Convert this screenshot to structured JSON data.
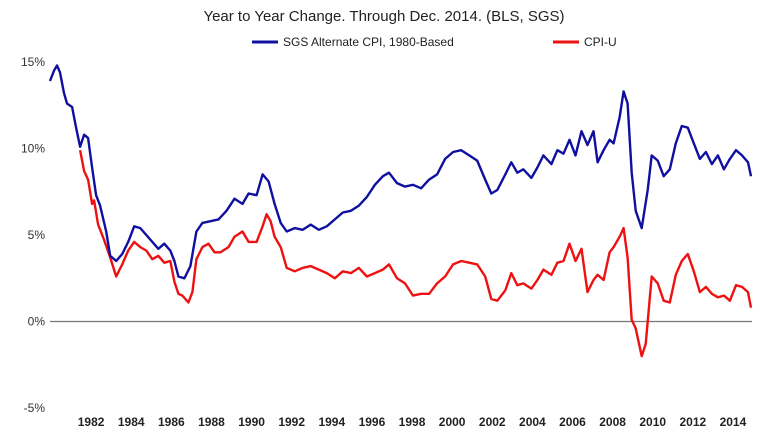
{
  "chart_data": {
    "type": "line",
    "title": "Year to Year Change. Through Dec. 2014.   (BLS, SGS)",
    "xlabel": "",
    "ylabel": "",
    "xlim": [
      1980.0,
      2015.0
    ],
    "ylim": [
      -5,
      15
    ],
    "yticks": [
      -5,
      0,
      5,
      10,
      15
    ],
    "ytick_labels": [
      "-5%",
      "0%",
      "5%",
      "10%",
      "15%"
    ],
    "xticks": [
      1982,
      1984,
      1986,
      1988,
      1990,
      1992,
      1994,
      1996,
      1998,
      2000,
      2002,
      2004,
      2006,
      2008,
      2010,
      2012,
      2014
    ],
    "xtick_labels": [
      "1982",
      "1984",
      "1986",
      "1988",
      "1990",
      "1992",
      "1994",
      "1996",
      "1998",
      "2000",
      "2002",
      "2004",
      "2006",
      "2008",
      "2010",
      "2012",
      "2014"
    ],
    "zero_line": true,
    "grid": false,
    "legend_position": "top",
    "series": [
      {
        "name": "SGS Alternate CPI, 1980-Based",
        "color": "#1010a0",
        "points": [
          [
            1980.0,
            13.9
          ],
          [
            1980.2,
            14.5
          ],
          [
            1980.35,
            14.8
          ],
          [
            1980.5,
            14.4
          ],
          [
            1980.7,
            13.2
          ],
          [
            1980.85,
            12.6
          ],
          [
            1981.1,
            12.4
          ],
          [
            1981.3,
            11.2
          ],
          [
            1981.5,
            10.1
          ],
          [
            1981.7,
            10.8
          ],
          [
            1981.9,
            10.6
          ],
          [
            1982.1,
            8.9
          ],
          [
            1982.3,
            7.3
          ],
          [
            1982.5,
            6.7
          ],
          [
            1982.8,
            5.2
          ],
          [
            1983.0,
            3.8
          ],
          [
            1983.3,
            3.5
          ],
          [
            1983.6,
            3.9
          ],
          [
            1983.9,
            4.6
          ],
          [
            1984.2,
            5.5
          ],
          [
            1984.5,
            5.4
          ],
          [
            1984.8,
            5.0
          ],
          [
            1985.1,
            4.6
          ],
          [
            1985.4,
            4.2
          ],
          [
            1985.7,
            4.5
          ],
          [
            1986.0,
            4.1
          ],
          [
            1986.2,
            3.5
          ],
          [
            1986.4,
            2.6
          ],
          [
            1986.7,
            2.5
          ],
          [
            1987.0,
            3.2
          ],
          [
            1987.3,
            5.2
          ],
          [
            1987.6,
            5.7
          ],
          [
            1988.0,
            5.8
          ],
          [
            1988.4,
            5.9
          ],
          [
            1988.8,
            6.4
          ],
          [
            1989.2,
            7.1
          ],
          [
            1989.6,
            6.8
          ],
          [
            1989.9,
            7.4
          ],
          [
            1990.3,
            7.3
          ],
          [
            1990.6,
            8.5
          ],
          [
            1990.9,
            8.1
          ],
          [
            1991.2,
            6.8
          ],
          [
            1991.5,
            5.7
          ],
          [
            1991.8,
            5.2
          ],
          [
            1992.2,
            5.4
          ],
          [
            1992.6,
            5.3
          ],
          [
            1993.0,
            5.6
          ],
          [
            1993.4,
            5.3
          ],
          [
            1993.8,
            5.5
          ],
          [
            1994.2,
            5.9
          ],
          [
            1994.6,
            6.3
          ],
          [
            1995.0,
            6.4
          ],
          [
            1995.4,
            6.7
          ],
          [
            1995.8,
            7.2
          ],
          [
            1996.2,
            7.9
          ],
          [
            1996.6,
            8.4
          ],
          [
            1996.9,
            8.6
          ],
          [
            1997.3,
            8.0
          ],
          [
            1997.7,
            7.8
          ],
          [
            1998.1,
            7.9
          ],
          [
            1998.5,
            7.7
          ],
          [
            1998.9,
            8.2
          ],
          [
            1999.3,
            8.5
          ],
          [
            1999.7,
            9.4
          ],
          [
            2000.1,
            9.8
          ],
          [
            2000.5,
            9.9
          ],
          [
            2000.9,
            9.6
          ],
          [
            2001.3,
            9.3
          ],
          [
            2001.7,
            8.2
          ],
          [
            2002.0,
            7.4
          ],
          [
            2002.3,
            7.6
          ],
          [
            2002.7,
            8.5
          ],
          [
            2003.0,
            9.2
          ],
          [
            2003.3,
            8.6
          ],
          [
            2003.6,
            8.8
          ],
          [
            2004.0,
            8.3
          ],
          [
            2004.3,
            8.9
          ],
          [
            2004.6,
            9.6
          ],
          [
            2005.0,
            9.1
          ],
          [
            2005.3,
            9.9
          ],
          [
            2005.6,
            9.7
          ],
          [
            2005.9,
            10.5
          ],
          [
            2006.2,
            9.6
          ],
          [
            2006.5,
            11.0
          ],
          [
            2006.8,
            10.2
          ],
          [
            2007.1,
            11.0
          ],
          [
            2007.3,
            9.2
          ],
          [
            2007.6,
            9.9
          ],
          [
            2007.9,
            10.5
          ],
          [
            2008.1,
            10.3
          ],
          [
            2008.4,
            11.8
          ],
          [
            2008.6,
            13.3
          ],
          [
            2008.8,
            12.6
          ],
          [
            2009.0,
            8.6
          ],
          [
            2009.2,
            6.4
          ],
          [
            2009.5,
            5.4
          ],
          [
            2009.8,
            7.6
          ],
          [
            2010.0,
            9.6
          ],
          [
            2010.3,
            9.3
          ],
          [
            2010.6,
            8.4
          ],
          [
            2010.9,
            8.8
          ],
          [
            2011.2,
            10.3
          ],
          [
            2011.5,
            11.3
          ],
          [
            2011.8,
            11.2
          ],
          [
            2012.1,
            10.3
          ],
          [
            2012.4,
            9.4
          ],
          [
            2012.7,
            9.8
          ],
          [
            2013.0,
            9.1
          ],
          [
            2013.3,
            9.6
          ],
          [
            2013.6,
            8.8
          ],
          [
            2013.9,
            9.4
          ],
          [
            2014.2,
            9.9
          ],
          [
            2014.5,
            9.6
          ],
          [
            2014.8,
            9.2
          ],
          [
            2014.95,
            8.4
          ]
        ]
      },
      {
        "name": "CPI-U",
        "color": "#ee1111",
        "points": [
          [
            1981.5,
            9.9
          ],
          [
            1981.7,
            8.7
          ],
          [
            1981.9,
            8.2
          ],
          [
            1982.1,
            6.8
          ],
          [
            1982.2,
            7.0
          ],
          [
            1982.4,
            5.6
          ],
          [
            1982.7,
            4.7
          ],
          [
            1983.0,
            3.7
          ],
          [
            1983.3,
            2.6
          ],
          [
            1983.6,
            3.3
          ],
          [
            1983.9,
            4.1
          ],
          [
            1984.2,
            4.6
          ],
          [
            1984.5,
            4.3
          ],
          [
            1984.8,
            4.1
          ],
          [
            1985.1,
            3.6
          ],
          [
            1985.4,
            3.8
          ],
          [
            1985.7,
            3.4
          ],
          [
            1986.0,
            3.5
          ],
          [
            1986.2,
            2.3
          ],
          [
            1986.4,
            1.6
          ],
          [
            1986.6,
            1.5
          ],
          [
            1986.9,
            1.1
          ],
          [
            1987.1,
            1.7
          ],
          [
            1987.3,
            3.6
          ],
          [
            1987.6,
            4.3
          ],
          [
            1987.9,
            4.5
          ],
          [
            1988.2,
            4.0
          ],
          [
            1988.5,
            4.0
          ],
          [
            1988.9,
            4.3
          ],
          [
            1989.2,
            4.9
          ],
          [
            1989.6,
            5.2
          ],
          [
            1989.9,
            4.6
          ],
          [
            1990.3,
            4.6
          ],
          [
            1990.6,
            5.5
          ],
          [
            1990.8,
            6.2
          ],
          [
            1991.0,
            5.8
          ],
          [
            1991.2,
            4.9
          ],
          [
            1991.5,
            4.3
          ],
          [
            1991.8,
            3.1
          ],
          [
            1992.2,
            2.9
          ],
          [
            1992.6,
            3.1
          ],
          [
            1993.0,
            3.2
          ],
          [
            1993.4,
            3.0
          ],
          [
            1993.8,
            2.8
          ],
          [
            1994.2,
            2.5
          ],
          [
            1994.6,
            2.9
          ],
          [
            1995.0,
            2.8
          ],
          [
            1995.4,
            3.1
          ],
          [
            1995.8,
            2.6
          ],
          [
            1996.2,
            2.8
          ],
          [
            1996.6,
            3.0
          ],
          [
            1996.9,
            3.3
          ],
          [
            1997.3,
            2.5
          ],
          [
            1997.7,
            2.2
          ],
          [
            1998.1,
            1.5
          ],
          [
            1998.5,
            1.6
          ],
          [
            1998.9,
            1.6
          ],
          [
            1999.3,
            2.2
          ],
          [
            1999.7,
            2.6
          ],
          [
            2000.1,
            3.3
          ],
          [
            2000.5,
            3.5
          ],
          [
            2000.9,
            3.4
          ],
          [
            2001.3,
            3.3
          ],
          [
            2001.7,
            2.6
          ],
          [
            2002.0,
            1.3
          ],
          [
            2002.3,
            1.2
          ],
          [
            2002.7,
            1.8
          ],
          [
            2003.0,
            2.8
          ],
          [
            2003.3,
            2.1
          ],
          [
            2003.6,
            2.2
          ],
          [
            2004.0,
            1.9
          ],
          [
            2004.3,
            2.4
          ],
          [
            2004.6,
            3.0
          ],
          [
            2005.0,
            2.7
          ],
          [
            2005.3,
            3.4
          ],
          [
            2005.6,
            3.5
          ],
          [
            2005.9,
            4.5
          ],
          [
            2006.2,
            3.5
          ],
          [
            2006.5,
            4.2
          ],
          [
            2006.8,
            1.7
          ],
          [
            2007.1,
            2.4
          ],
          [
            2007.3,
            2.7
          ],
          [
            2007.6,
            2.4
          ],
          [
            2007.9,
            4.0
          ],
          [
            2008.1,
            4.3
          ],
          [
            2008.4,
            4.9
          ],
          [
            2008.6,
            5.4
          ],
          [
            2008.8,
            3.7
          ],
          [
            2009.0,
            0.1
          ],
          [
            2009.2,
            -0.4
          ],
          [
            2009.5,
            -2.0
          ],
          [
            2009.7,
            -1.3
          ],
          [
            2010.0,
            2.6
          ],
          [
            2010.3,
            2.2
          ],
          [
            2010.6,
            1.2
          ],
          [
            2010.9,
            1.1
          ],
          [
            2011.2,
            2.7
          ],
          [
            2011.5,
            3.5
          ],
          [
            2011.8,
            3.9
          ],
          [
            2012.1,
            2.9
          ],
          [
            2012.4,
            1.7
          ],
          [
            2012.7,
            2.0
          ],
          [
            2013.0,
            1.6
          ],
          [
            2013.3,
            1.4
          ],
          [
            2013.6,
            1.5
          ],
          [
            2013.9,
            1.2
          ],
          [
            2014.2,
            2.1
          ],
          [
            2014.5,
            2.0
          ],
          [
            2014.8,
            1.7
          ],
          [
            2014.95,
            0.8
          ]
        ]
      }
    ]
  }
}
